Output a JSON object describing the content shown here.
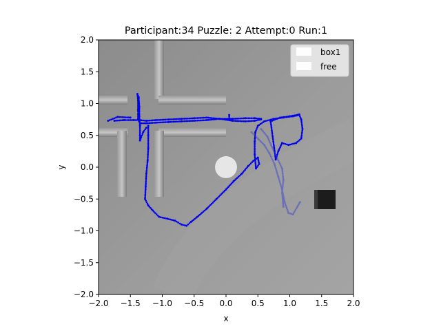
{
  "chart_data": {
    "type": "scatter",
    "title": "Participant:34 Puzzle: 2 Attempt:0 Run:1",
    "xlabel": "x",
    "ylabel": "y",
    "xlim": [
      -2.0,
      2.0
    ],
    "ylim": [
      -2.0,
      2.0
    ],
    "xticks": [
      "−2.0",
      "−1.5",
      "−1.0",
      "−0.5",
      "0.0",
      "0.5",
      "1.0",
      "1.5",
      "2.0"
    ],
    "yticks": [
      "−2.0",
      "−1.5",
      "−1.0",
      "−0.5",
      "0.0",
      "0.5",
      "1.0",
      "1.5",
      "2.0"
    ],
    "xtick_values": [
      -2.0,
      -1.5,
      -1.0,
      -0.5,
      0.0,
      0.5,
      1.0,
      1.5,
      2.0
    ],
    "ytick_values": [
      -2.0,
      -1.5,
      -1.0,
      -0.5,
      0.0,
      0.5,
      1.0,
      1.5,
      2.0
    ],
    "grid": false,
    "legend_position": "top-right",
    "legend": [
      {
        "label": "box1",
        "color": "#ffffff"
      },
      {
        "label": "free",
        "color": "#ffffff"
      }
    ],
    "background": "top-down grey scene image with wall segments, a white circular target and a black box",
    "series": [
      {
        "color": "#0000ee",
        "opacity": 1.0,
        "points": [
          [
            -1.75,
            0.73
          ],
          [
            -1.6,
            0.74
          ],
          [
            -1.45,
            0.74
          ],
          [
            -1.35,
            0.74
          ],
          [
            -1.25,
            0.73
          ],
          [
            -1.1,
            0.74
          ],
          [
            -0.9,
            0.75
          ],
          [
            -0.7,
            0.76
          ],
          [
            -0.5,
            0.77
          ],
          [
            -0.3,
            0.78
          ],
          [
            -0.1,
            0.76
          ],
          [
            0.1,
            0.73
          ],
          [
            0.3,
            0.72
          ],
          [
            0.45,
            0.73
          ],
          [
            0.55,
            0.75
          ],
          [
            0.55,
            0.76
          ],
          [
            0.45,
            0.77
          ],
          [
            0.3,
            0.77
          ],
          [
            0.1,
            0.76
          ],
          [
            -0.1,
            0.76
          ],
          [
            -0.3,
            0.74
          ],
          [
            -0.5,
            0.73
          ],
          [
            -0.7,
            0.72
          ],
          [
            -0.9,
            0.71
          ],
          [
            -1.1,
            0.7
          ],
          [
            -1.25,
            0.69
          ],
          [
            -1.35,
            0.69
          ],
          [
            -1.38,
            0.75
          ],
          [
            -1.38,
            0.9
          ],
          [
            -1.38,
            1.05
          ],
          [
            -1.39,
            1.15
          ],
          [
            -1.37,
            1.1
          ],
          [
            -1.36,
            0.95
          ],
          [
            -1.36,
            0.8
          ],
          [
            -1.35,
            0.65
          ],
          [
            -1.35,
            0.5
          ],
          [
            -1.35,
            0.42
          ],
          [
            -1.3,
            0.55
          ],
          [
            -1.25,
            0.62
          ],
          [
            -1.22,
            0.65
          ],
          [
            -1.22,
            0.5
          ],
          [
            -1.22,
            0.3
          ],
          [
            -1.23,
            0.1
          ],
          [
            -1.25,
            -0.1
          ],
          [
            -1.26,
            -0.3
          ],
          [
            -1.27,
            -0.5
          ],
          [
            -1.22,
            -0.6
          ],
          [
            -1.15,
            -0.68
          ],
          [
            -1.05,
            -0.78
          ],
          [
            -0.92,
            -0.81
          ],
          [
            -0.8,
            -0.84
          ],
          [
            -0.7,
            -0.9
          ],
          [
            -0.62,
            -0.92
          ],
          [
            -0.55,
            -0.86
          ],
          [
            -0.45,
            -0.78
          ],
          [
            -0.3,
            -0.65
          ],
          [
            -0.15,
            -0.5
          ],
          [
            0.0,
            -0.35
          ],
          [
            0.12,
            -0.22
          ],
          [
            0.25,
            -0.1
          ],
          [
            0.35,
            0.02
          ],
          [
            0.43,
            0.1
          ],
          [
            0.5,
            0.15
          ],
          [
            0.52,
            0.05
          ],
          [
            0.47,
            -0.02
          ],
          [
            0.45,
            0.2
          ],
          [
            0.45,
            0.4
          ],
          [
            0.46,
            0.55
          ],
          [
            0.5,
            0.65
          ],
          [
            0.6,
            0.72
          ],
          [
            0.75,
            0.76
          ],
          [
            0.9,
            0.78
          ],
          [
            1.05,
            0.8
          ],
          [
            1.15,
            0.82
          ],
          [
            1.18,
            0.75
          ],
          [
            1.2,
            0.6
          ],
          [
            1.18,
            0.45
          ],
          [
            1.1,
            0.38
          ],
          [
            0.98,
            0.35
          ],
          [
            0.88,
            0.38
          ],
          [
            0.82,
            0.25
          ],
          [
            0.78,
            0.12
          ],
          [
            0.7,
            0.72
          ],
          [
            0.85,
            0.78
          ],
          [
            1.0,
            0.8
          ],
          [
            1.15,
            0.83
          ],
          [
            0.05,
            0.82
          ],
          [
            0.05,
            0.74
          ],
          [
            -1.85,
            0.73
          ],
          [
            -1.7,
            0.79
          ],
          [
            -1.5,
            0.78
          ]
        ]
      },
      {
        "color": "#2a35d6",
        "opacity": 0.45,
        "points": [
          [
            0.4,
            0.55
          ],
          [
            0.5,
            0.45
          ],
          [
            0.6,
            0.35
          ],
          [
            0.68,
            0.22
          ],
          [
            0.76,
            0.05
          ],
          [
            0.82,
            -0.15
          ],
          [
            0.88,
            -0.35
          ],
          [
            0.92,
            -0.55
          ],
          [
            0.98,
            -0.72
          ],
          [
            1.05,
            -0.74
          ],
          [
            1.12,
            -0.62
          ],
          [
            1.16,
            -0.55
          ],
          [
            0.55,
            0.6
          ],
          [
            0.65,
            0.48
          ],
          [
            0.72,
            0.32
          ],
          [
            0.8,
            0.15
          ],
          [
            0.88,
            -0.02
          ],
          [
            0.9,
            -0.2
          ],
          [
            0.88,
            -0.4
          ],
          [
            0.9,
            -0.62
          ]
        ]
      }
    ]
  }
}
